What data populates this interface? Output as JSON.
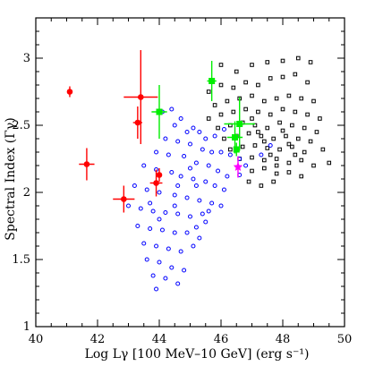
{
  "chart_data": {
    "type": "scatter",
    "xlabel": "Log Lγ [100 MeV–10 GeV] (erg s⁻¹)",
    "ylabel": "Spectral Index (Γγ)",
    "xlim": [
      40,
      50
    ],
    "ylim": [
      1,
      3.3
    ],
    "x_ticks": [
      "40",
      "42",
      "44",
      "46",
      "48",
      "50"
    ],
    "y_ticks": [
      "1",
      "1.5",
      "2",
      "2.5",
      "3"
    ],
    "grid": false,
    "legend": "none",
    "colors": {
      "red": "#ff0000",
      "green": "#00ee00",
      "magenta": "#ff00ff",
      "blue": "#0000ff",
      "black": "#000000"
    },
    "series": [
      {
        "color": "red",
        "marker": "filled-circle-with-errorbars",
        "points": [
          {
            "x": 41.1,
            "y": 2.75,
            "xerr": 0.05,
            "yerr": 0.04
          },
          {
            "x": 41.65,
            "y": 2.21,
            "xerr": 0.25,
            "yerr": 0.12
          },
          {
            "x": 42.85,
            "y": 1.95,
            "xerr": 0.35,
            "yerr": 0.1
          },
          {
            "x": 43.3,
            "y": 2.52,
            "xerr": 0.15,
            "yerr": 0.12
          },
          {
            "x": 43.4,
            "y": 2.71,
            "xerr": 0.55,
            "yerr": 0.35
          },
          {
            "x": 43.9,
            "y": 2.07,
            "xerr": 0.2,
            "yerr": 0.1
          },
          {
            "x": 44.0,
            "y": 2.13,
            "xerr": 0.05,
            "yerr": 0.05
          }
        ]
      },
      {
        "color": "green",
        "marker": "filled-square-with-errorbars",
        "points": [
          {
            "x": 44.0,
            "y": 2.6,
            "xerr": 0.25,
            "yerr": 0.2
          },
          {
            "x": 45.7,
            "y": 2.83,
            "xerr": 0.15,
            "yerr": 0.15
          },
          {
            "x": 46.45,
            "y": 2.41,
            "xerr": 0.25,
            "yerr": 0.12
          },
          {
            "x": 46.5,
            "y": 2.32,
            "xerr": 0.05,
            "yerr": 0.05
          },
          {
            "x": 46.6,
            "y": 2.51,
            "xerr": 0.5,
            "yerr": 0.2
          }
        ]
      },
      {
        "color": "magenta",
        "marker": "filled-star-with-errorbars",
        "points": [
          {
            "x": 46.55,
            "y": 2.19,
            "xerr": 0.1,
            "yerr": 0.08
          }
        ]
      },
      {
        "color": "blue",
        "marker": "open-circle",
        "points": [
          [
            44.1,
            2.6
          ],
          [
            44.4,
            2.62
          ],
          [
            44.7,
            2.55
          ],
          [
            44.5,
            2.5
          ],
          [
            44.9,
            2.45
          ],
          [
            45.1,
            2.48
          ],
          [
            45.3,
            2.45
          ],
          [
            45.5,
            2.4
          ],
          [
            44.2,
            2.4
          ],
          [
            44.6,
            2.38
          ],
          [
            45.0,
            2.36
          ],
          [
            45.4,
            2.32
          ],
          [
            45.7,
            2.3
          ],
          [
            46.0,
            2.3
          ],
          [
            46.3,
            2.28
          ],
          [
            46.6,
            2.25
          ],
          [
            43.9,
            2.3
          ],
          [
            44.3,
            2.28
          ],
          [
            44.8,
            2.27
          ],
          [
            45.2,
            2.22
          ],
          [
            45.6,
            2.2
          ],
          [
            45.9,
            2.16
          ],
          [
            46.2,
            2.12
          ],
          [
            46.6,
            2.13
          ],
          [
            43.5,
            2.2
          ],
          [
            43.9,
            2.17
          ],
          [
            44.4,
            2.15
          ],
          [
            44.7,
            2.12
          ],
          [
            45.1,
            2.1
          ],
          [
            45.5,
            2.08
          ],
          [
            45.8,
            2.05
          ],
          [
            46.1,
            2.02
          ],
          [
            43.2,
            2.05
          ],
          [
            43.6,
            2.02
          ],
          [
            44.0,
            2.0
          ],
          [
            44.5,
            1.98
          ],
          [
            44.9,
            1.96
          ],
          [
            45.3,
            1.94
          ],
          [
            45.7,
            1.92
          ],
          [
            46.0,
            1.9
          ],
          [
            43.0,
            1.9
          ],
          [
            43.4,
            1.88
          ],
          [
            43.8,
            1.86
          ],
          [
            44.2,
            1.85
          ],
          [
            44.6,
            1.84
          ],
          [
            45.0,
            1.82
          ],
          [
            45.4,
            1.84
          ],
          [
            45.6,
            1.86
          ],
          [
            43.3,
            1.75
          ],
          [
            43.7,
            1.73
          ],
          [
            44.1,
            1.72
          ],
          [
            44.5,
            1.7
          ],
          [
            44.9,
            1.7
          ],
          [
            45.2,
            1.74
          ],
          [
            45.5,
            1.78
          ],
          [
            43.5,
            1.62
          ],
          [
            43.9,
            1.6
          ],
          [
            44.3,
            1.58
          ],
          [
            44.7,
            1.56
          ],
          [
            45.1,
            1.6
          ],
          [
            43.6,
            1.5
          ],
          [
            44.0,
            1.48
          ],
          [
            44.4,
            1.44
          ],
          [
            44.8,
            1.42
          ],
          [
            43.8,
            1.38
          ],
          [
            44.2,
            1.36
          ],
          [
            43.9,
            1.28
          ],
          [
            44.6,
            1.32
          ],
          [
            45.3,
            1.66
          ],
          [
            45.8,
            2.42
          ],
          [
            46.1,
            2.47
          ],
          [
            47.3,
            2.28
          ],
          [
            47.6,
            2.35
          ],
          [
            46.8,
            2.2
          ],
          [
            44.6,
            2.05
          ],
          [
            43.7,
            1.92
          ],
          [
            44.0,
            1.8
          ],
          [
            45.2,
            2.05
          ],
          [
            44.5,
            1.9
          ],
          [
            45.0,
            2.18
          ]
        ]
      },
      {
        "color": "black",
        "marker": "open-square",
        "points": [
          [
            46.0,
            2.95
          ],
          [
            46.5,
            2.9
          ],
          [
            47.0,
            2.95
          ],
          [
            47.5,
            2.97
          ],
          [
            48.0,
            2.98
          ],
          [
            48.5,
            3.0
          ],
          [
            48.9,
            2.97
          ],
          [
            45.6,
            2.75
          ],
          [
            46.0,
            2.8
          ],
          [
            46.4,
            2.78
          ],
          [
            46.8,
            2.82
          ],
          [
            47.2,
            2.8
          ],
          [
            47.6,
            2.85
          ],
          [
            48.0,
            2.86
          ],
          [
            48.4,
            2.88
          ],
          [
            48.8,
            2.82
          ],
          [
            45.8,
            2.65
          ],
          [
            46.2,
            2.68
          ],
          [
            46.6,
            2.7
          ],
          [
            47.0,
            2.72
          ],
          [
            47.4,
            2.68
          ],
          [
            47.8,
            2.7
          ],
          [
            48.2,
            2.72
          ],
          [
            48.6,
            2.7
          ],
          [
            49.0,
            2.68
          ],
          [
            45.6,
            2.55
          ],
          [
            46.0,
            2.58
          ],
          [
            46.4,
            2.6
          ],
          [
            46.8,
            2.62
          ],
          [
            47.2,
            2.6
          ],
          [
            47.6,
            2.58
          ],
          [
            48.0,
            2.62
          ],
          [
            48.4,
            2.6
          ],
          [
            48.8,
            2.58
          ],
          [
            49.2,
            2.55
          ],
          [
            45.9,
            2.48
          ],
          [
            46.3,
            2.5
          ],
          [
            46.7,
            2.52
          ],
          [
            47.1,
            2.5
          ],
          [
            47.5,
            2.48
          ],
          [
            47.9,
            2.52
          ],
          [
            48.3,
            2.5
          ],
          [
            48.7,
            2.48
          ],
          [
            49.1,
            2.45
          ],
          [
            46.1,
            2.4
          ],
          [
            46.5,
            2.42
          ],
          [
            46.9,
            2.44
          ],
          [
            47.3,
            2.42
          ],
          [
            47.7,
            2.4
          ],
          [
            48.1,
            2.42
          ],
          [
            48.5,
            2.4
          ],
          [
            48.9,
            2.38
          ],
          [
            46.3,
            2.32
          ],
          [
            46.7,
            2.34
          ],
          [
            47.1,
            2.35
          ],
          [
            47.5,
            2.33
          ],
          [
            47.9,
            2.32
          ],
          [
            48.3,
            2.34
          ],
          [
            48.7,
            2.3
          ],
          [
            49.3,
            2.32
          ],
          [
            46.6,
            2.25
          ],
          [
            47.0,
            2.26
          ],
          [
            47.4,
            2.24
          ],
          [
            47.8,
            2.25
          ],
          [
            48.2,
            2.22
          ],
          [
            48.6,
            2.24
          ],
          [
            49.0,
            2.2
          ],
          [
            49.5,
            2.22
          ],
          [
            47.0,
            2.16
          ],
          [
            47.4,
            2.18
          ],
          [
            47.8,
            2.14
          ],
          [
            48.2,
            2.15
          ],
          [
            48.6,
            2.12
          ],
          [
            46.9,
            2.08
          ],
          [
            47.3,
            2.05
          ],
          [
            47.7,
            2.08
          ],
          [
            47.0,
            2.55
          ],
          [
            47.2,
            2.45
          ],
          [
            47.4,
            2.38
          ],
          [
            47.6,
            2.28
          ],
          [
            47.8,
            2.2
          ],
          [
            48.0,
            2.46
          ],
          [
            48.2,
            2.36
          ],
          [
            48.4,
            2.28
          ]
        ]
      }
    ]
  }
}
